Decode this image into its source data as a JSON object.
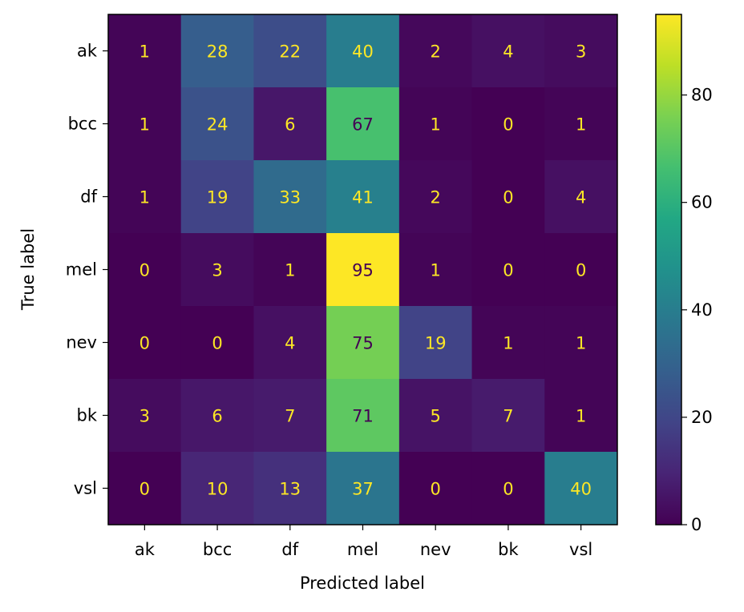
{
  "chart_data": {
    "type": "heatmap",
    "title": "",
    "xlabel": "Predicted label",
    "ylabel": "True label",
    "x_categories": [
      "ak",
      "bcc",
      "df",
      "mel",
      "nev",
      "bk",
      "vsl"
    ],
    "y_categories": [
      "ak",
      "bcc",
      "df",
      "mel",
      "nev",
      "bk",
      "vsl"
    ],
    "values": [
      [
        1,
        28,
        22,
        40,
        2,
        4,
        3
      ],
      [
        1,
        24,
        6,
        67,
        1,
        0,
        1
      ],
      [
        1,
        19,
        33,
        41,
        2,
        0,
        4
      ],
      [
        0,
        3,
        1,
        95,
        1,
        0,
        0
      ],
      [
        0,
        0,
        4,
        75,
        19,
        1,
        1
      ],
      [
        3,
        6,
        7,
        71,
        5,
        7,
        1
      ],
      [
        0,
        10,
        13,
        37,
        0,
        0,
        40
      ]
    ],
    "colormap": "viridis",
    "color_range": [
      0,
      95
    ],
    "colorbar_ticks": [
      0,
      20,
      40,
      60,
      80
    ],
    "text_colors": {
      "low": "#fde725",
      "high": "#440154"
    }
  }
}
